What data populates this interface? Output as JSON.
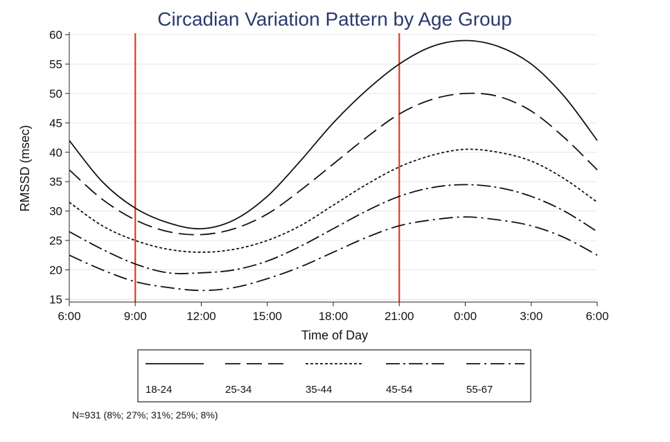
{
  "chart_data": {
    "type": "line",
    "title": "Circadian Variation Pattern by Age Group",
    "xlabel": "Time of Day",
    "ylabel": "RMSSD (msec)",
    "x_ticks": [
      "6:00",
      "9:00",
      "12:00",
      "15:00",
      "18:00",
      "21:00",
      "0:00",
      "3:00",
      "6:00"
    ],
    "x_hours": [
      6,
      9,
      12,
      15,
      18,
      21,
      24,
      27,
      30
    ],
    "xlim": [
      6,
      30
    ],
    "ylim": [
      15,
      60
    ],
    "y_ticks": [
      15,
      20,
      25,
      30,
      35,
      40,
      45,
      50,
      55,
      60
    ],
    "grid": true,
    "reference_lines": [
      {
        "x": "9:00",
        "color": "#e03a1e"
      },
      {
        "x": "21:00",
        "color": "#e03a1e"
      }
    ],
    "legend_position": "bottom",
    "series": [
      {
        "name": "18-24",
        "dash": "solid",
        "x": [
          "6:00",
          "7:30",
          "9:00",
          "10:30",
          "12:00",
          "13:30",
          "15:00",
          "16:30",
          "18:00",
          "19:30",
          "21:00",
          "22:30",
          "0:00",
          "1:30",
          "3:00",
          "4:30",
          "6:00"
        ],
        "values": [
          42.0,
          35.0,
          30.5,
          28.0,
          27.0,
          28.5,
          32.5,
          38.5,
          45.0,
          50.5,
          55.0,
          58.0,
          59.0,
          58.0,
          55.0,
          49.5,
          42.0
        ]
      },
      {
        "name": "25-34",
        "dash": "long-dash",
        "x": [
          "6:00",
          "7:30",
          "9:00",
          "10:30",
          "12:00",
          "13:30",
          "15:00",
          "16:30",
          "18:00",
          "19:30",
          "21:00",
          "22:30",
          "0:00",
          "1:30",
          "3:00",
          "4:30",
          "6:00"
        ],
        "values": [
          37.0,
          32.0,
          28.5,
          26.5,
          26.0,
          27.0,
          29.5,
          33.5,
          38.0,
          42.5,
          46.5,
          49.0,
          50.0,
          49.5,
          47.0,
          42.5,
          37.0
        ]
      },
      {
        "name": "35-44",
        "dash": "short-dash",
        "x": [
          "6:00",
          "7:30",
          "9:00",
          "10:30",
          "12:00",
          "13:30",
          "15:00",
          "16:30",
          "18:00",
          "19:30",
          "21:00",
          "22:30",
          "0:00",
          "1:30",
          "3:00",
          "4:30",
          "6:00"
        ],
        "values": [
          31.5,
          27.5,
          25.0,
          23.5,
          23.0,
          23.5,
          25.0,
          27.5,
          31.0,
          34.5,
          37.5,
          39.5,
          40.5,
          40.0,
          38.5,
          35.5,
          31.5
        ]
      },
      {
        "name": "45-54",
        "dash": "dash-dot",
        "x": [
          "6:00",
          "7:30",
          "9:00",
          "10:30",
          "12:00",
          "13:30",
          "15:00",
          "16:30",
          "18:00",
          "19:30",
          "21:00",
          "22:30",
          "0:00",
          "1:30",
          "3:00",
          "4:30",
          "6:00"
        ],
        "values": [
          26.5,
          23.5,
          21.0,
          19.5,
          19.5,
          20.0,
          21.5,
          24.0,
          27.0,
          30.0,
          32.5,
          34.0,
          34.5,
          34.0,
          32.5,
          30.0,
          26.5
        ]
      },
      {
        "name": "55-67",
        "dash": "long-dash-dot",
        "x": [
          "6:00",
          "7:30",
          "9:00",
          "10:30",
          "12:00",
          "13:30",
          "15:00",
          "16:30",
          "18:00",
          "19:30",
          "21:00",
          "22:30",
          "0:00",
          "1:30",
          "3:00",
          "4:30",
          "6:00"
        ],
        "values": [
          22.5,
          20.0,
          18.0,
          17.0,
          16.5,
          17.0,
          18.5,
          20.5,
          23.0,
          25.5,
          27.5,
          28.5,
          29.0,
          28.5,
          27.5,
          25.5,
          22.5
        ]
      }
    ],
    "footnote": "N=931 (8%; 27%; 31%; 25%; 8%)"
  }
}
